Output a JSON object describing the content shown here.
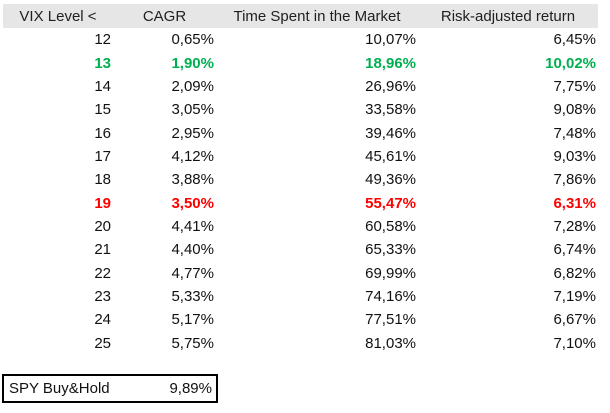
{
  "colors": {
    "green": "#00B050",
    "red": "#FF0000",
    "header_bg": "#E7E6E6",
    "text": "#111111"
  },
  "table": {
    "headers": [
      "VIX Level <",
      "CAGR",
      "Time Spent in the Market",
      "Risk-adjusted return"
    ],
    "columns": [
      "vix",
      "cagr",
      "time",
      "risk"
    ],
    "rows": [
      {
        "vix": "12",
        "cagr": "0,65%",
        "time": "10,07%",
        "risk": "6,45%",
        "highlight": ""
      },
      {
        "vix": "13",
        "cagr": "1,90%",
        "time": "18,96%",
        "risk": "10,02%",
        "highlight": "green"
      },
      {
        "vix": "14",
        "cagr": "2,09%",
        "time": "26,96%",
        "risk": "7,75%",
        "highlight": ""
      },
      {
        "vix": "15",
        "cagr": "3,05%",
        "time": "33,58%",
        "risk": "9,08%",
        "highlight": ""
      },
      {
        "vix": "16",
        "cagr": "2,95%",
        "time": "39,46%",
        "risk": "7,48%",
        "highlight": ""
      },
      {
        "vix": "17",
        "cagr": "4,12%",
        "time": "45,61%",
        "risk": "9,03%",
        "highlight": ""
      },
      {
        "vix": "18",
        "cagr": "3,88%",
        "time": "49,36%",
        "risk": "7,86%",
        "highlight": ""
      },
      {
        "vix": "19",
        "cagr": "3,50%",
        "time": "55,47%",
        "risk": "6,31%",
        "highlight": "red"
      },
      {
        "vix": "20",
        "cagr": "4,41%",
        "time": "60,58%",
        "risk": "7,28%",
        "highlight": ""
      },
      {
        "vix": "21",
        "cagr": "4,40%",
        "time": "65,33%",
        "risk": "6,74%",
        "highlight": ""
      },
      {
        "vix": "22",
        "cagr": "4,77%",
        "time": "69,99%",
        "risk": "6,82%",
        "highlight": ""
      },
      {
        "vix": "23",
        "cagr": "5,33%",
        "time": "74,16%",
        "risk": "7,19%",
        "highlight": ""
      },
      {
        "vix": "24",
        "cagr": "5,17%",
        "time": "77,51%",
        "risk": "6,67%",
        "highlight": ""
      },
      {
        "vix": "25",
        "cagr": "5,75%",
        "time": "81,03%",
        "risk": "7,10%",
        "highlight": ""
      }
    ]
  },
  "footer": {
    "label": "SPY Buy&Hold",
    "value": "9,89%"
  }
}
